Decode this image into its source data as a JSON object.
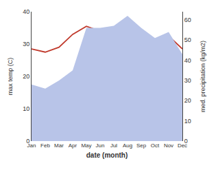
{
  "chart_data": {
    "type": "line",
    "categories": [
      "Jan",
      "Feb",
      "Mar",
      "Apr",
      "May",
      "Jun",
      "Jul",
      "Aug",
      "Sep",
      "Oct",
      "Nov",
      "Dec"
    ],
    "series": [
      {
        "type": "area",
        "axis": "y2",
        "color": "#b8c4e8",
        "values": [
          28,
          26,
          30,
          35,
          56,
          56,
          57,
          62,
          56,
          51,
          54,
          43
        ]
      },
      {
        "type": "line",
        "color": "#c0392b",
        "values": [
          28.5,
          27.5,
          29.0,
          33.0,
          35.5,
          34.0,
          33.0,
          31.5,
          32.0,
          31.5,
          32.5,
          28.5
        ]
      }
    ],
    "xlabel": "date (month)",
    "ylabel": "max temp (C)",
    "y2label": "med. precipitation (kg/m2)",
    "ylim": [
      0,
      40
    ],
    "yticks": [
      0,
      10,
      20,
      30,
      40
    ],
    "y2lim": [
      0,
      64
    ],
    "y2ticks": [
      0,
      10,
      20,
      30,
      40,
      50,
      60
    ],
    "grid": false
  }
}
